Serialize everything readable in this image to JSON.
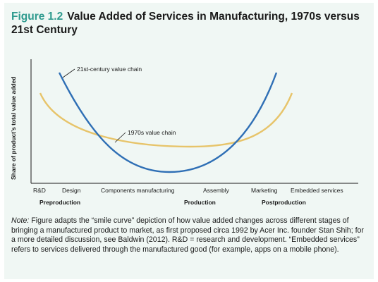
{
  "figure": {
    "number": "Figure 1.2",
    "title": "Value Added of Services in Manufacturing, 1970s versus 21st Century"
  },
  "chart_data": {
    "type": "line",
    "ylabel": "Share of product’s total value added",
    "categories": [
      "R&D",
      "Design",
      "Components manufacturing",
      "Assembly",
      "Marketing",
      "Embedded services"
    ],
    "phases": [
      "Preproduction",
      "Production",
      "Postproduction"
    ],
    "series": [
      {
        "name": "21st-century value chain",
        "color": "#2f6fb5",
        "label": "21st-century value chain"
      },
      {
        "name": "1970s value chain",
        "color": "#e7c46a",
        "label": "1970s value chain"
      }
    ],
    "grid": false,
    "legend": "inline-annotations"
  },
  "note": {
    "label": "Note:",
    "text": " Figure adapts the “smile curve” depiction of how value added changes across different stages of bringing a manufactured product to market, as first proposed circa 1992 by Acer Inc. founder Stan Shih; for a more detailed discussion, see Baldwin (2012). R&D = research and development. “Embedded services” refers to services delivered through the manufactured good (for example, apps on a mobile phone)."
  }
}
